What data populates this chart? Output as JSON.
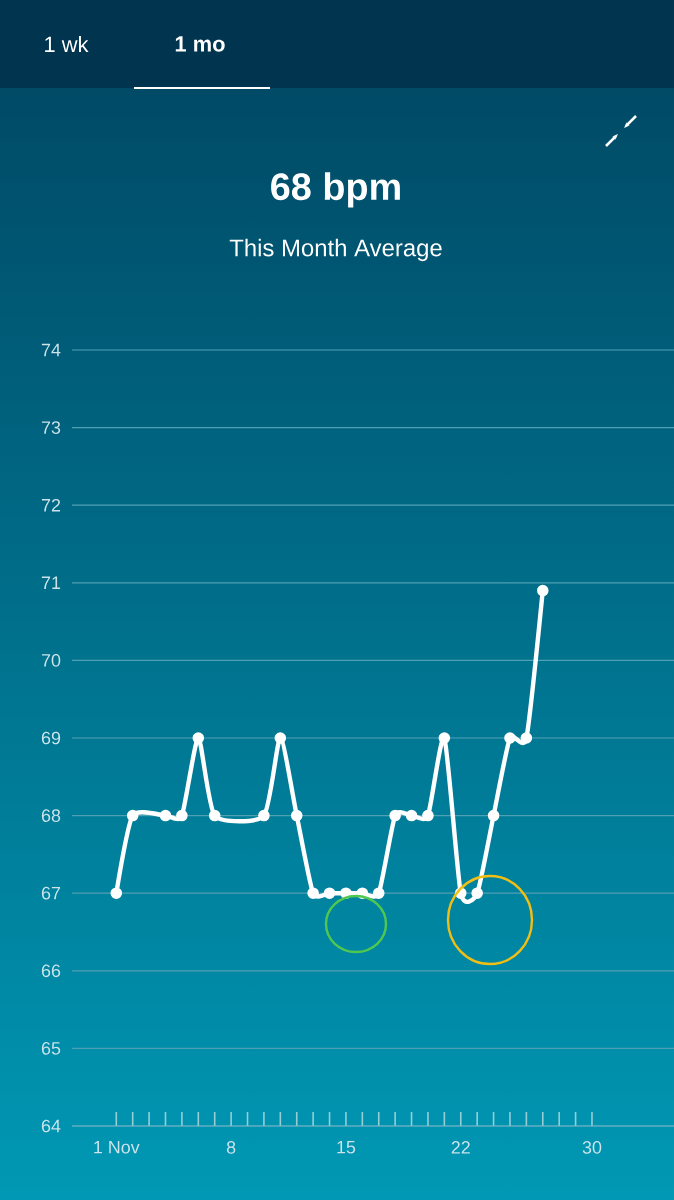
{
  "chart_data": {
    "type": "line",
    "title": "68 bpm",
    "subtitle": "This Month Average",
    "annotations": [
      "1 wk",
      "1 mo"
    ],
    "x": [
      1,
      2,
      4,
      5,
      6,
      7,
      10,
      11,
      12,
      13,
      14,
      15,
      16,
      17,
      18,
      19,
      20,
      21,
      22,
      23,
      24,
      25,
      26,
      27
    ],
    "series": [
      {
        "color": "#ffffff",
        "values": [
          67,
          68,
          68,
          68,
          69,
          68,
          68,
          69,
          68,
          67,
          67,
          67,
          67,
          67,
          68,
          68,
          68,
          69,
          67,
          67,
          68,
          69,
          69,
          70.9
        ]
      }
    ],
    "xlim": [
      -1.7,
      35
    ],
    "xticks": [
      {
        "value": 1,
        "label": "1 Nov"
      },
      {
        "value": 2,
        "label": null
      },
      {
        "value": 3,
        "label": null
      },
      {
        "value": 4,
        "label": null
      },
      {
        "value": 5,
        "label": null
      },
      {
        "value": 6,
        "label": null
      },
      {
        "value": 7,
        "label": null
      },
      8,
      {
        "value": 9,
        "label": null
      },
      {
        "value": 10,
        "label": null
      },
      {
        "value": 11,
        "label": null
      },
      {
        "value": 12,
        "label": null
      },
      {
        "value": 13,
        "label": null
      },
      {
        "value": 14,
        "label": null
      },
      15,
      {
        "value": 16,
        "label": null
      },
      {
        "value": 17,
        "label": null
      },
      {
        "value": 18,
        "label": null
      },
      {
        "value": 19,
        "label": null
      },
      {
        "value": 20,
        "label": null
      },
      {
        "value": 21,
        "label": null
      },
      22,
      {
        "value": 23,
        "label": null
      },
      {
        "value": 24,
        "label": null
      },
      {
        "value": 25,
        "label": null
      },
      {
        "value": 26,
        "label": null
      },
      {
        "value": 27,
        "label": null
      },
      {
        "value": 28,
        "label": null
      },
      {
        "value": 29,
        "label": null
      },
      30
    ],
    "ylim": [
      64,
      74
    ],
    "yticks": [
      64,
      65,
      66,
      67,
      68,
      69,
      70,
      71,
      72,
      73,
      74
    ],
    "grid": "y",
    "marker": "circle",
    "line_style": "solid"
  }
}
